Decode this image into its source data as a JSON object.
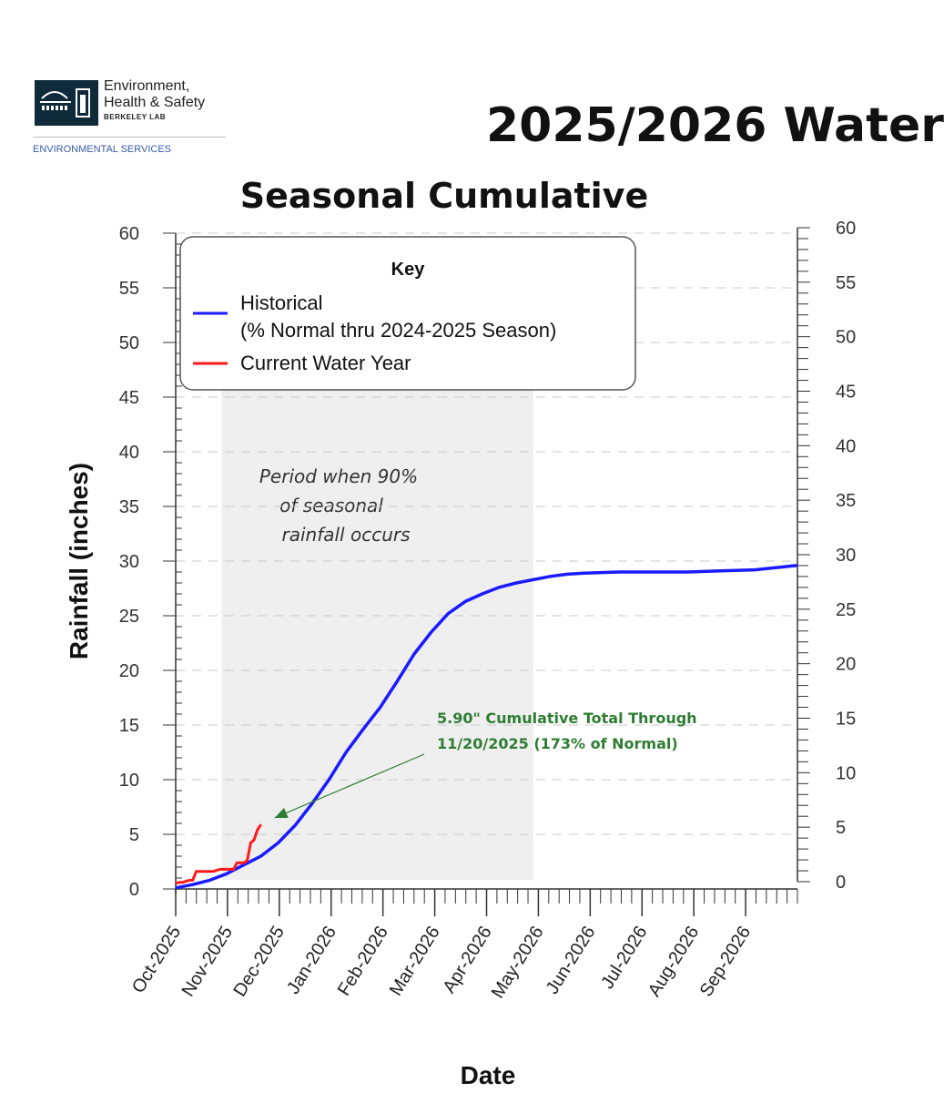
{
  "header": {
    "logo_line1": "Environment,",
    "logo_line2": "Health & Safety",
    "logo_line3": "BERKELEY LAB",
    "logo_subtitle": "ENVIRONMENTAL SERVICES",
    "title": "2025/2026 Water"
  },
  "colors": {
    "historical": "#1a1aff",
    "current": "#ff1a1a",
    "annotation": "#2e7d32",
    "shade": "#efefef"
  },
  "chart_data": {
    "type": "line",
    "title": "Seasonal Cumulative",
    "xlabel": "Date",
    "ylabel": "Rainfall (inches)",
    "ylim": [
      0,
      60
    ],
    "y_ticks": [
      "0",
      "5",
      "10",
      "15",
      "20",
      "25",
      "30",
      "35",
      "40",
      "45",
      "50",
      "55",
      "60"
    ],
    "grid": "dashed horizontal every 5",
    "categories": [
      "Oct-2025",
      "Nov-2025",
      "Dec-2025",
      "Jan-2026",
      "Feb-2026",
      "Mar-2026",
      "Apr-2026",
      "May-2026",
      "Jun-2026",
      "Jul-2026",
      "Aug-2026",
      "Sep-2026"
    ],
    "x_unit": "days since Oct 1 2025",
    "x_range": [
      0,
      365
    ],
    "legend": {
      "title": "Key",
      "position": "top-left",
      "entries": [
        "Historical",
        "(% Normal thru 2024-2025 Season)",
        "Current Water Year"
      ]
    },
    "shaded_region": {
      "label_lines": [
        "Period when 90%",
        "of seasonal",
        "rainfall occurs"
      ],
      "x_start": 27,
      "x_end": 210
    },
    "annotation": {
      "lines": [
        "5.90\" Cumulative Total Through",
        "11/20/2025 (173% of Normal)"
      ],
      "x": 58,
      "y": 6.5
    },
    "series": [
      {
        "name": "Historical",
        "x": [
          0,
          10,
          20,
          30,
          40,
          50,
          60,
          70,
          80,
          90,
          100,
          110,
          120,
          130,
          140,
          150,
          160,
          170,
          180,
          190,
          200,
          210,
          220,
          230,
          240,
          260,
          280,
          300,
          320,
          340,
          365
        ],
        "y": [
          0.1,
          0.4,
          0.8,
          1.4,
          2.2,
          3.0,
          4.2,
          5.8,
          7.8,
          10.0,
          12.5,
          14.6,
          16.6,
          19.0,
          21.5,
          23.5,
          25.2,
          26.3,
          27.0,
          27.6,
          28.0,
          28.3,
          28.6,
          28.8,
          28.9,
          29.0,
          29.0,
          29.0,
          29.1,
          29.2,
          29.6
        ]
      },
      {
        "name": "Current Water Year",
        "x": [
          0,
          2,
          4,
          6,
          8,
          10,
          12,
          14,
          16,
          18,
          20,
          22,
          24,
          26,
          28,
          30,
          32,
          34,
          36,
          38,
          40,
          42,
          44,
          46,
          48,
          50
        ],
        "y": [
          0.5,
          0.6,
          0.6,
          0.7,
          0.8,
          0.8,
          1.6,
          1.6,
          1.6,
          1.6,
          1.6,
          1.6,
          1.7,
          1.8,
          1.8,
          1.8,
          1.8,
          1.8,
          2.4,
          2.4,
          2.4,
          2.6,
          4.2,
          4.5,
          5.4,
          5.9
        ]
      }
    ]
  }
}
